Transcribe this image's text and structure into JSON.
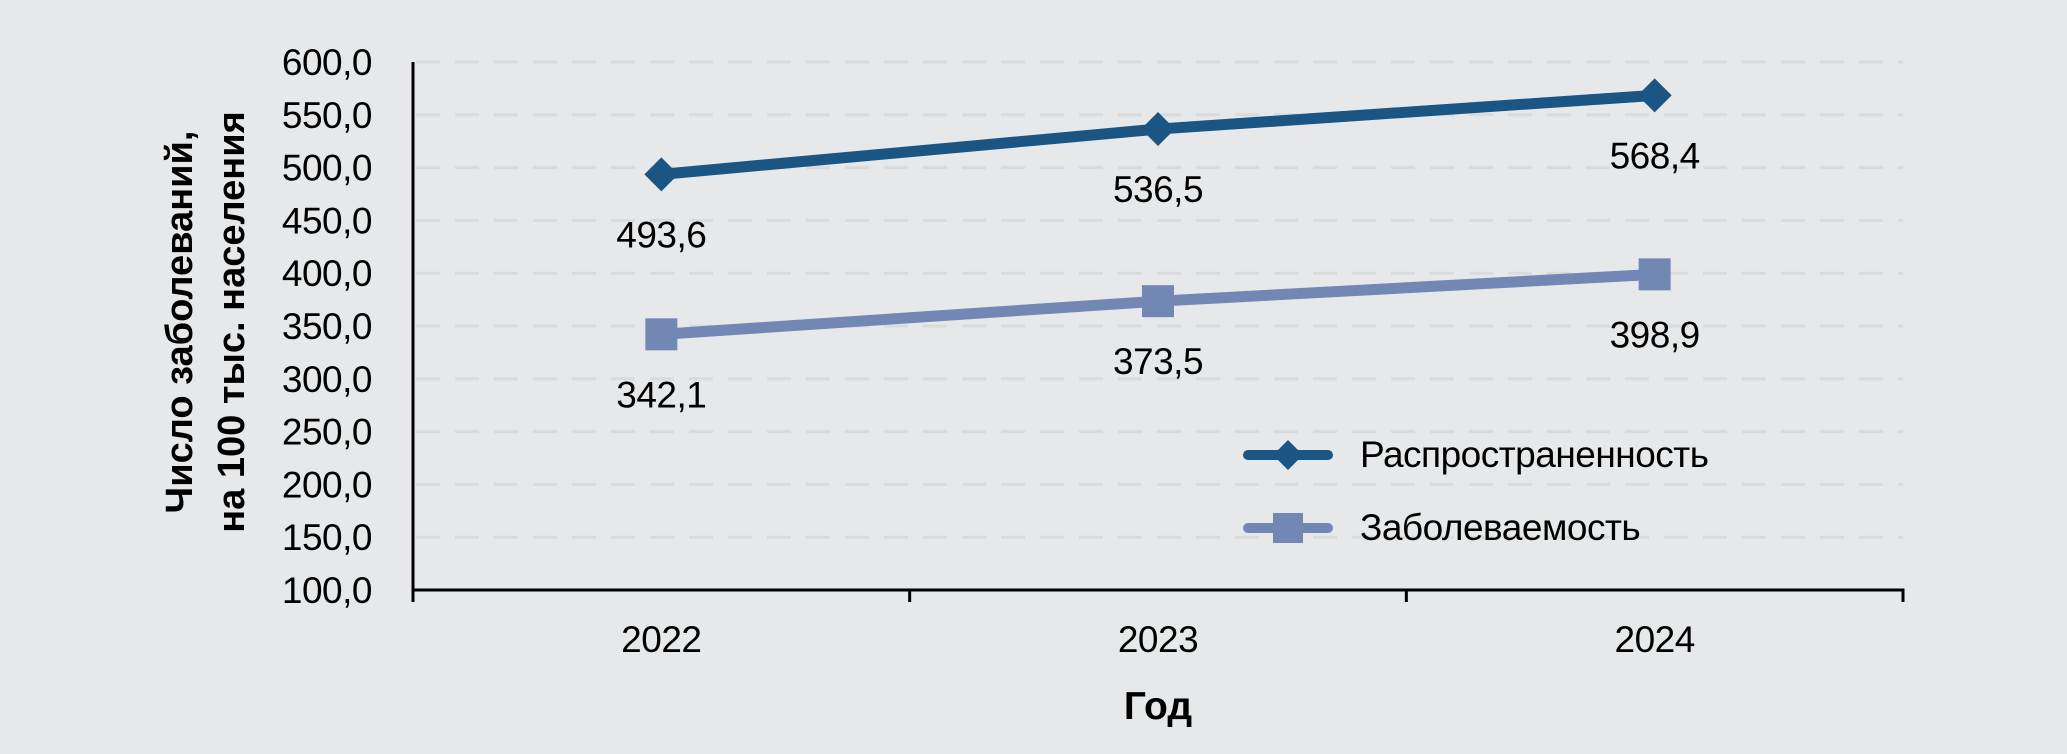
{
  "chart_data": {
    "type": "line",
    "categories": [
      "2022",
      "2023",
      "2024"
    ],
    "series": [
      {
        "id": "prevalence",
        "name": "Распространенность",
        "marker": "diamond",
        "color": "#1B5584",
        "values": [
          493.6,
          536.5,
          568.4
        ],
        "labels": [
          "493,6",
          "536,5",
          "568,4"
        ]
      },
      {
        "id": "incidence",
        "name": "Заболеваемость",
        "marker": "square",
        "color": "#7387B5",
        "values": [
          342.1,
          373.5,
          398.9
        ],
        "labels": [
          "342,1",
          "373,5",
          "398,9"
        ]
      }
    ],
    "title": "",
    "xlabel": "Год",
    "ylabel_lines": [
      "Число заболеваний,",
      "на 100 тыс. населения"
    ],
    "ylim": [
      100,
      600
    ],
    "y_tick_step": 50,
    "y_ticks": [
      {
        "value": 600,
        "label": "600,0"
      },
      {
        "value": 550,
        "label": "550,0"
      },
      {
        "value": 500,
        "label": "500,0"
      },
      {
        "value": 450,
        "label": "450,0"
      },
      {
        "value": 400,
        "label": "400,0"
      },
      {
        "value": 350,
        "label": "350,0"
      },
      {
        "value": 300,
        "label": "300,0"
      },
      {
        "value": 250,
        "label": "250,0"
      },
      {
        "value": 200,
        "label": "200,0"
      },
      {
        "value": 150,
        "label": "150,0"
      },
      {
        "value": 100,
        "label": "100,0"
      }
    ],
    "grid": "dashed horizontal gridlines on",
    "legend_position": "inside right, stacked vertically",
    "data_label_position": "below points",
    "colors": {
      "axis": "#000000",
      "gridline": "#d9dbdd",
      "background": "#e7e8e9",
      "text": "#000000"
    }
  }
}
